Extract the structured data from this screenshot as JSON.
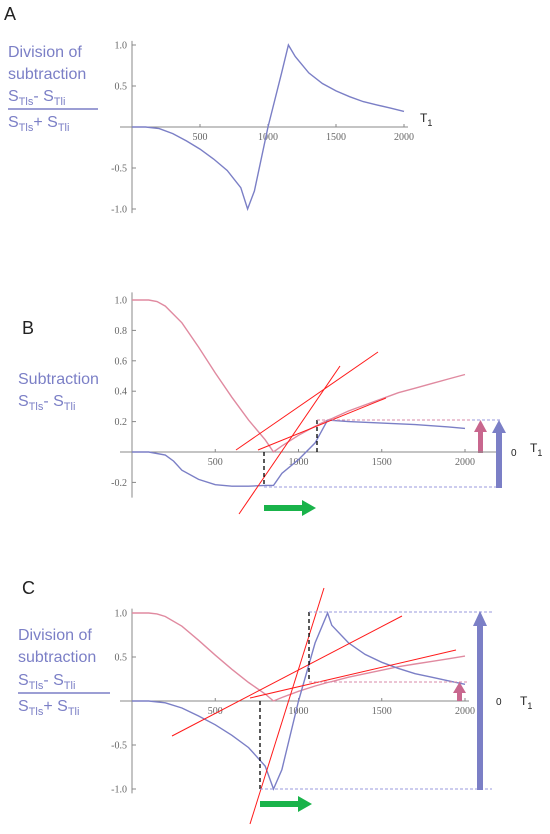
{
  "panels": {
    "A": {
      "letter": "A",
      "label_lines": [
        "Division of",
        "subtraction"
      ],
      "frac_num": [
        "S",
        "Tls",
        "- S",
        "Tli"
      ],
      "frac_den": [
        "S",
        "Tls",
        "+ S",
        "Tli"
      ],
      "x_axis_label": "T",
      "x_axis_sub": "1"
    },
    "B": {
      "letter": "B",
      "label_lines": [
        "Subtraction"
      ],
      "frac_num": [
        "S",
        "Tls",
        "- S",
        "Tli"
      ],
      "x_axis_label": "T",
      "x_axis_sub": "1",
      "zero_label": "0"
    },
    "C": {
      "letter": "C",
      "label_lines": [
        "Division of",
        "subtraction"
      ],
      "frac_num": [
        "S",
        "Tls",
        "- S",
        "Tli"
      ],
      "frac_den": [
        "S",
        "Tls",
        "+ S",
        "Tli"
      ],
      "x_axis_label": "T",
      "x_axis_sub": "1",
      "zero_label": "0"
    }
  },
  "colors": {
    "blue": "#7b7fc6",
    "pink": "#e08aa0",
    "red": "#ff1a1a",
    "green": "#19b34a",
    "magenta_arrow": "#c8678e",
    "axis": "#888888"
  },
  "chart_data": [
    {
      "panel": "A",
      "type": "line",
      "xlabel": "T1",
      "x_ticks": [
        500,
        1000,
        1500,
        2000
      ],
      "y_ticks": [
        -1.0,
        -0.5,
        0.5,
        1.0
      ],
      "xlim": [
        0,
        2000
      ],
      "ylim": [
        -1.05,
        1.05
      ],
      "series": [
        {
          "color": "blue",
          "x": [
            0,
            100,
            200,
            300,
            400,
            500,
            600,
            700,
            800,
            850,
            900,
            1000,
            1100,
            1150,
            1200,
            1300,
            1400,
            1500,
            1600,
            1700,
            1800,
            1900,
            2000
          ],
          "y": [
            0,
            0,
            -0.02,
            -0.08,
            -0.17,
            -0.27,
            -0.39,
            -0.53,
            -0.74,
            -1.0,
            -0.78,
            0.0,
            0.66,
            1.0,
            0.86,
            0.66,
            0.53,
            0.44,
            0.37,
            0.31,
            0.27,
            0.23,
            0.19
          ]
        }
      ]
    },
    {
      "panel": "B",
      "type": "line",
      "xlabel": "T1",
      "x_ticks": [
        500,
        1000,
        1500,
        2000
      ],
      "y_ticks": [
        -0.2,
        0.2,
        0.4,
        0.6,
        0.8,
        1.0
      ],
      "xlim": [
        0,
        2000
      ],
      "ylim": [
        -0.3,
        1.05
      ],
      "series": [
        {
          "color": "pink",
          "x": [
            0,
            100,
            150,
            200,
            300,
            400,
            500,
            600,
            700,
            800,
            850,
            900,
            1000,
            1100,
            1175,
            1200,
            1300,
            1400,
            1500,
            1600,
            1700,
            1800,
            1900,
            2000
          ],
          "y": [
            1.0,
            1.0,
            0.99,
            0.96,
            0.85,
            0.69,
            0.52,
            0.36,
            0.21,
            0.08,
            0.0,
            0.04,
            0.11,
            0.17,
            0.21,
            0.22,
            0.27,
            0.31,
            0.35,
            0.39,
            0.42,
            0.45,
            0.48,
            0.51
          ]
        },
        {
          "color": "blue",
          "x": [
            0,
            100,
            200,
            250,
            300,
            400,
            500,
            600,
            700,
            800,
            850,
            900,
            1000,
            1100,
            1175,
            1300,
            1500,
            1700,
            1900,
            2000
          ],
          "y": [
            0,
            0,
            -0.02,
            -0.06,
            -0.12,
            -0.18,
            -0.215,
            -0.225,
            -0.225,
            -0.22,
            -0.22,
            -0.14,
            -0.05,
            0.06,
            0.21,
            0.2,
            0.19,
            0.18,
            0.165,
            0.155
          ]
        }
      ]
    },
    {
      "panel": "C",
      "type": "line",
      "xlabel": "T1",
      "x_ticks": [
        500,
        1000,
        1500,
        2000
      ],
      "y_ticks": [
        -1.0,
        -0.5,
        0.5,
        1.0
      ],
      "xlim": [
        0,
        2000
      ],
      "ylim": [
        -1.05,
        1.05
      ],
      "series": [
        {
          "color": "pink",
          "x": [
            0,
            100,
            150,
            200,
            300,
            400,
            500,
            600,
            700,
            800,
            850,
            900,
            1000,
            1100,
            1175,
            1200,
            1300,
            1400,
            1500,
            1600,
            1700,
            1800,
            1900,
            2000
          ],
          "y": [
            1.0,
            1.0,
            0.99,
            0.96,
            0.85,
            0.69,
            0.52,
            0.36,
            0.21,
            0.08,
            0.0,
            0.04,
            0.11,
            0.17,
            0.21,
            0.22,
            0.27,
            0.31,
            0.35,
            0.39,
            0.42,
            0.45,
            0.48,
            0.51
          ]
        },
        {
          "color": "blue",
          "x": [
            0,
            100,
            200,
            300,
            400,
            500,
            600,
            700,
            800,
            850,
            900,
            1000,
            1100,
            1175,
            1200,
            1300,
            1400,
            1500,
            1600,
            1700,
            1800,
            1900,
            2000
          ],
          "y": [
            0,
            0,
            -0.02,
            -0.08,
            -0.17,
            -0.27,
            -0.39,
            -0.53,
            -0.74,
            -1.0,
            -0.78,
            0.0,
            0.66,
            1.0,
            0.86,
            0.66,
            0.53,
            0.44,
            0.37,
            0.31,
            0.27,
            0.23,
            0.19
          ]
        }
      ]
    }
  ]
}
